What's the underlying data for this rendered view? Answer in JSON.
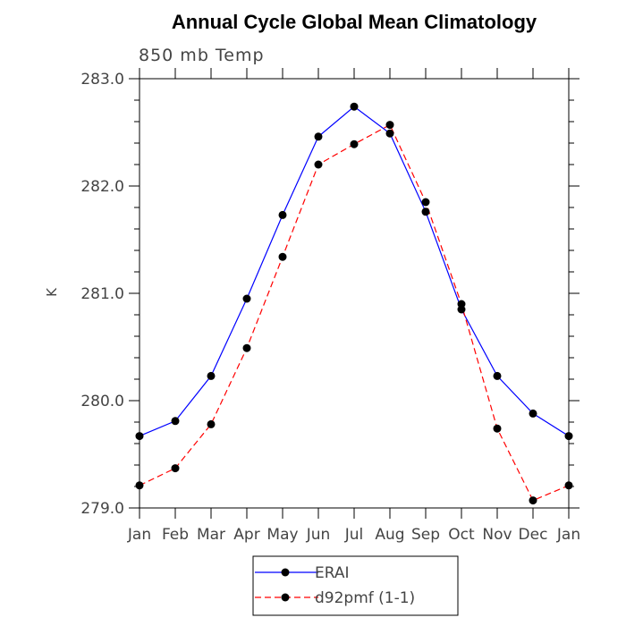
{
  "chart_data": {
    "type": "line",
    "title": "Annual Cycle Global Mean Climatology",
    "subtitle": "850 mb Temp",
    "xlabel": "",
    "ylabel": "K",
    "categories": [
      "Jan",
      "Feb",
      "Mar",
      "Apr",
      "May",
      "Jun",
      "Jul",
      "Aug",
      "Sep",
      "Oct",
      "Nov",
      "Dec",
      "Jan"
    ],
    "ylim": [
      279.0,
      283.0
    ],
    "yticks": [
      "279.0",
      "280.0",
      "281.0",
      "282.0",
      "283.0"
    ],
    "series": [
      {
        "name": "ERAI",
        "color": "#0000ff",
        "style": "solid",
        "values": [
          279.67,
          279.81,
          280.23,
          280.95,
          281.73,
          282.46,
          282.74,
          282.49,
          281.76,
          280.85,
          280.23,
          279.88,
          279.67
        ]
      },
      {
        "name": "d92pmf (1-1)",
        "color": "#ff0000",
        "style": "dashed",
        "values": [
          279.21,
          279.37,
          279.78,
          280.49,
          281.34,
          282.2,
          282.39,
          282.57,
          281.85,
          280.9,
          279.74,
          279.07,
          279.21
        ]
      }
    ],
    "legend": "bottom",
    "grid": false
  }
}
